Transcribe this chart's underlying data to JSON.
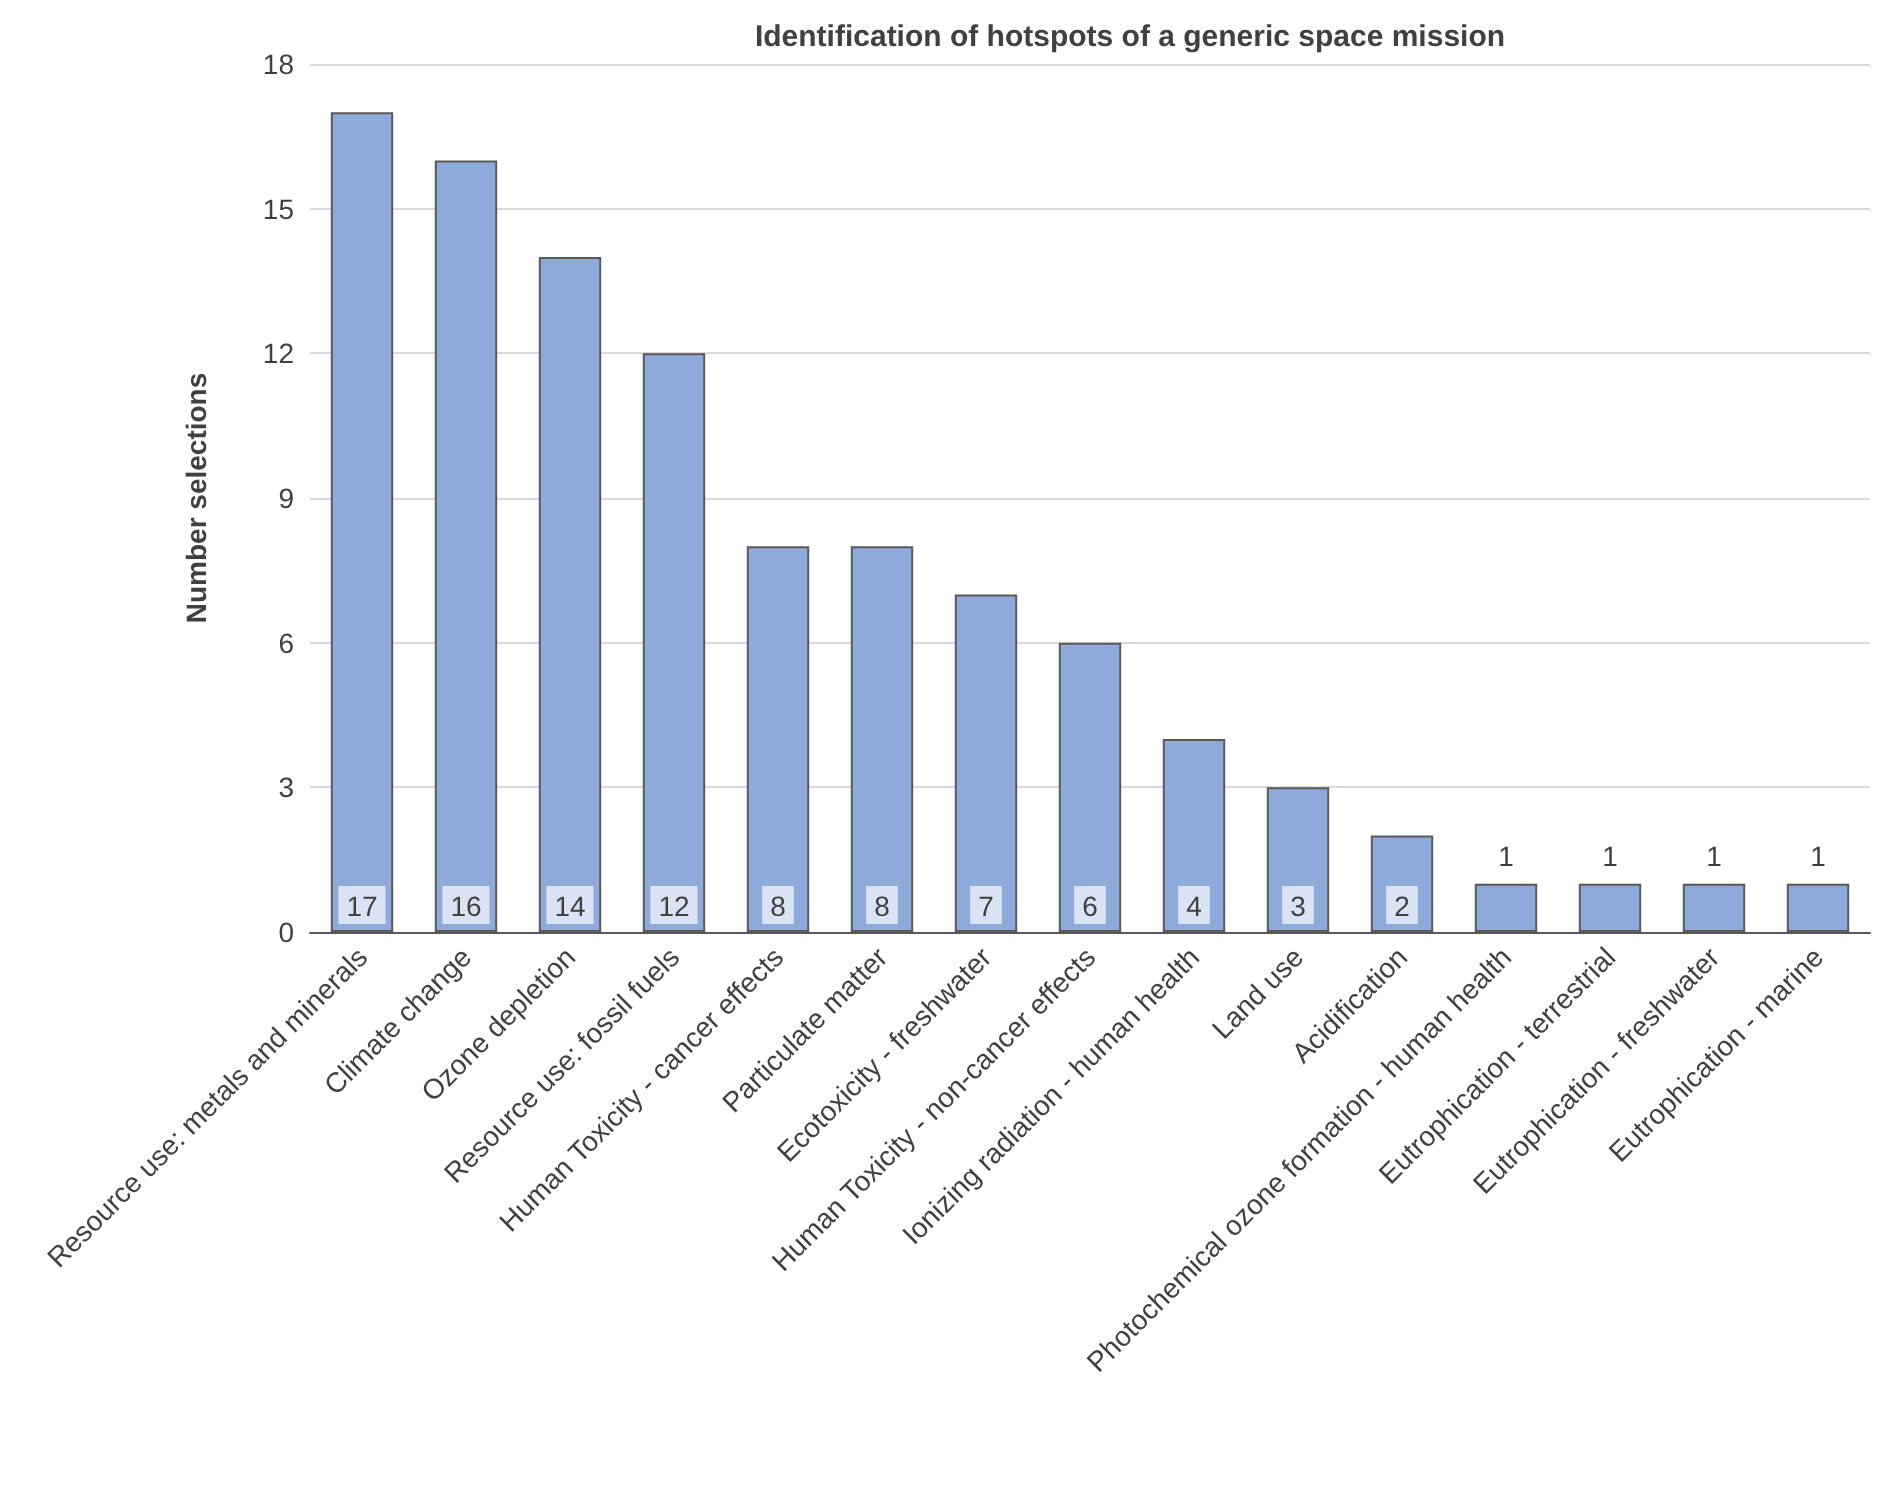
{
  "chart_data": {
    "type": "bar",
    "title": "Identification of hotspots of a generic space mission",
    "ylabel": "Number selections",
    "categories": [
      "Resource use: metals and minerals",
      "Climate change",
      "Ozone depletion",
      "Resource use: fossil fuels",
      "Human Toxicity - cancer effects",
      "Particulate matter",
      "Ecotoxicity - freshwater",
      "Human Toxicity - non-cancer effects",
      "Ionizing radiation - human health",
      "Land use",
      "Acidification",
      "Photochemical ozone formation - human health",
      "Eutrophication - terrestrial",
      "Eutrophication - freshwater",
      "Eutrophication - marine"
    ],
    "values": [
      17,
      16,
      14,
      12,
      8,
      8,
      7,
      6,
      4,
      3,
      2,
      1,
      1,
      1,
      1
    ],
    "color": "#8eaadb",
    "ylim": [
      0,
      18
    ],
    "yticks": [
      0,
      3,
      6,
      9,
      12,
      15,
      18
    ],
    "grid": "y",
    "data_labels": true
  }
}
